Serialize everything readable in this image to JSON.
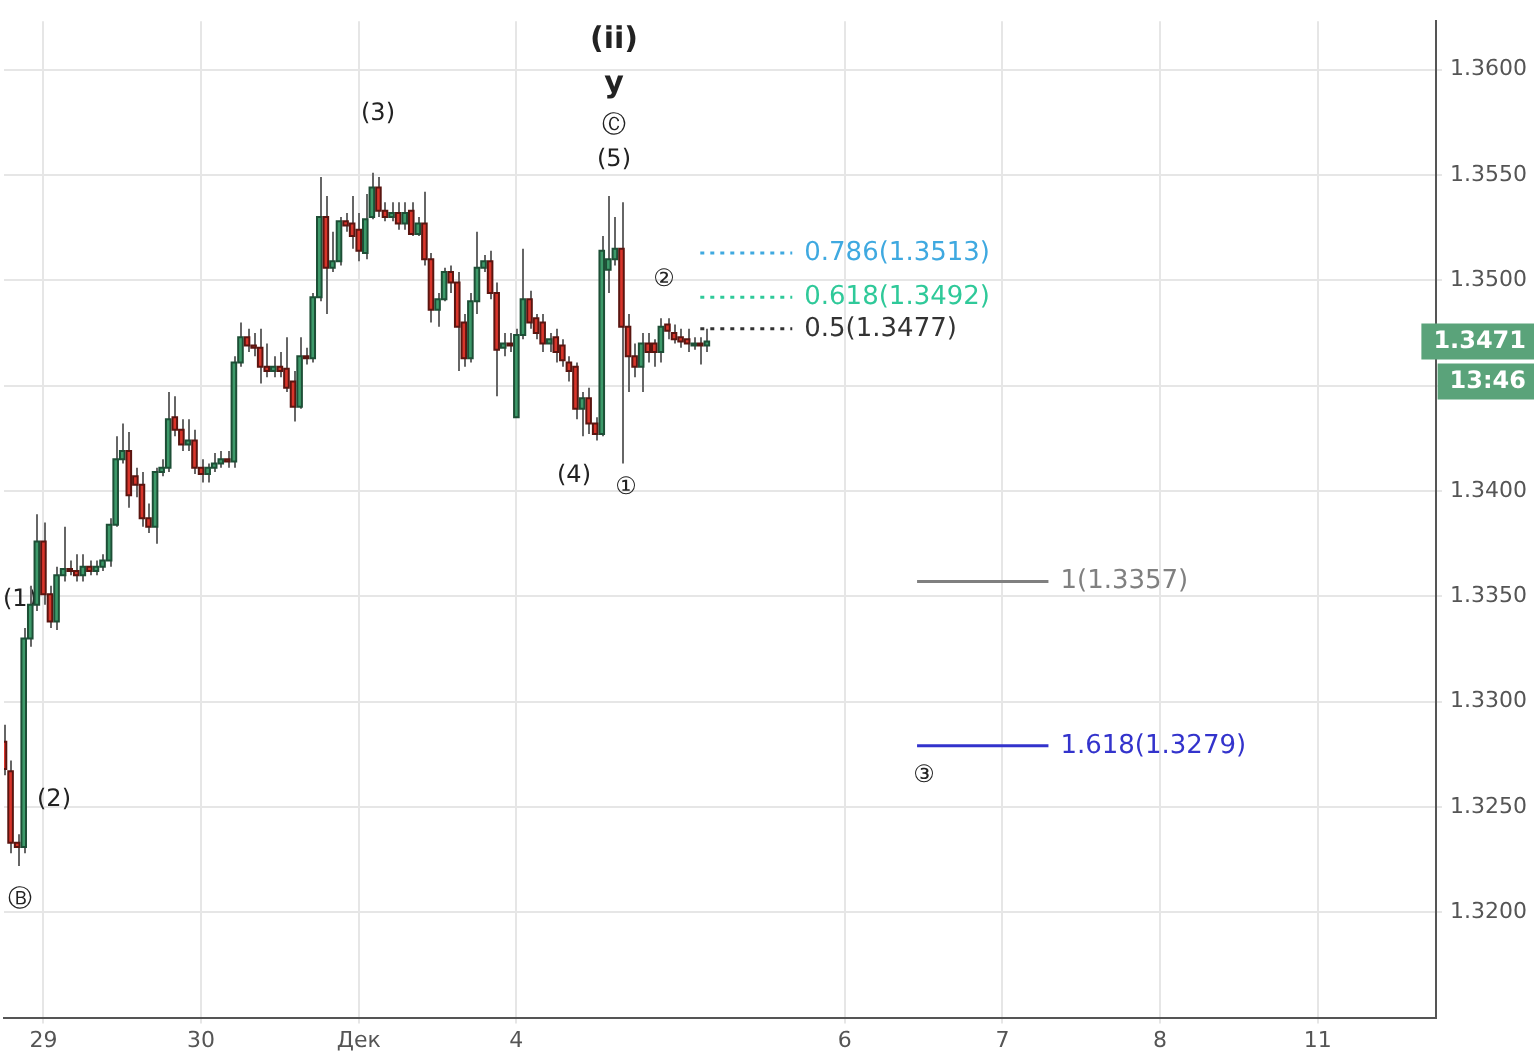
{
  "chart_data": {
    "type": "candlestick",
    "categories": [
      null,
      null,
      null,
      null,
      null,
      null,
      "29",
      null,
      null,
      null,
      null,
      null,
      null,
      null,
      null,
      null,
      null,
      null,
      null,
      null,
      null,
      null,
      null,
      null,
      null,
      null,
      null,
      null,
      null,
      null,
      "30",
      null,
      null,
      null,
      null,
      null,
      null,
      null,
      null,
      null,
      null,
      null,
      null,
      null,
      null,
      null,
      null,
      null,
      null,
      null,
      null,
      null,
      null,
      null,
      "Дек",
      null,
      null,
      null,
      null,
      null,
      null,
      null,
      null,
      null,
      null,
      null,
      null,
      null,
      null,
      null,
      null,
      null,
      null,
      null,
      null,
      null,
      null,
      null,
      "4",
      null,
      null,
      null,
      null,
      null,
      null,
      null,
      null,
      null,
      null,
      null,
      null,
      null,
      null,
      null,
      null,
      null,
      null,
      null,
      null,
      null,
      null,
      null,
      null,
      null,
      null,
      null,
      null,
      null,
      null,
      null,
      null,
      null,
      null,
      null,
      null,
      null,
      null,
      null,
      null,
      null,
      null,
      null,
      null,
      null,
      null,
      null,
      null,
      null,
      "6",
      null,
      null,
      null,
      null,
      null,
      null,
      null,
      null,
      null,
      null,
      null,
      null,
      null,
      null,
      null,
      null,
      null,
      null,
      null,
      null,
      null,
      null,
      null,
      "7",
      null,
      null,
      null,
      null,
      null,
      null,
      null,
      null,
      null,
      null,
      null,
      null,
      null,
      null,
      null,
      null,
      null,
      null,
      null,
      null,
      null,
      null,
      null,
      "8",
      null,
      null,
      null,
      null,
      null,
      null,
      null,
      null,
      null,
      null,
      null,
      null,
      null,
      null,
      null,
      null,
      null,
      null,
      null,
      null,
      null,
      null,
      null,
      "11",
      null,
      null,
      null,
      null,
      null,
      null,
      null,
      null,
      null,
      null,
      null,
      null,
      null,
      null,
      null,
      null,
      null,
      null
    ],
    "ohlc": [
      [
        1.3281,
        1.3289,
        1.3265,
        1.3268
      ],
      [
        1.3267,
        1.3272,
        1.3228,
        1.3233
      ],
      [
        1.3233,
        1.3237,
        1.3222,
        1.3231
      ],
      [
        1.3231,
        1.3335,
        1.3228,
        1.333
      ],
      [
        1.333,
        1.3355,
        1.3326,
        1.3346
      ],
      [
        1.3346,
        1.3389,
        1.3343,
        1.3376
      ],
      [
        1.3376,
        1.3385,
        1.3346,
        1.3351
      ],
      [
        1.3351,
        1.3355,
        1.3335,
        1.3338
      ],
      [
        1.3338,
        1.3364,
        1.3334,
        1.336
      ],
      [
        1.336,
        1.3383,
        1.3357,
        1.3363
      ],
      [
        1.3363,
        1.3367,
        1.336,
        1.3362
      ],
      [
        1.3362,
        1.337,
        1.3357,
        1.336
      ],
      [
        1.336,
        1.337,
        1.3357,
        1.3364
      ],
      [
        1.3364,
        1.3367,
        1.336,
        1.3362
      ],
      [
        1.3362,
        1.3367,
        1.336,
        1.3364
      ],
      [
        1.3364,
        1.337,
        1.3362,
        1.3367
      ],
      [
        1.3367,
        1.3387,
        1.3364,
        1.3384
      ],
      [
        1.3384,
        1.3426,
        1.3383,
        1.3415
      ],
      [
        1.3415,
        1.3432,
        1.3413,
        1.3419
      ],
      [
        1.3419,
        1.3428,
        1.3392,
        1.3398
      ],
      [
        1.3407,
        1.3411,
        1.3397,
        1.3403
      ],
      [
        1.3403,
        1.3409,
        1.3383,
        1.3387
      ],
      [
        1.3387,
        1.3394,
        1.338,
        1.3383
      ],
      [
        1.3383,
        1.3411,
        1.3375,
        1.3409
      ],
      [
        1.3409,
        1.3415,
        1.3407,
        1.3411
      ],
      [
        1.3411,
        1.3447,
        1.3409,
        1.3434
      ],
      [
        1.3435,
        1.3445,
        1.3426,
        1.3429
      ],
      [
        1.3429,
        1.3434,
        1.3419,
        1.3422
      ],
      [
        1.3422,
        1.3434,
        1.3419,
        1.3424
      ],
      [
        1.3424,
        1.3429,
        1.3408,
        1.3411
      ],
      [
        1.3411,
        1.3415,
        1.3404,
        1.3408
      ],
      [
        1.3408,
        1.3413,
        1.3404,
        1.3411
      ],
      [
        1.3411,
        1.3418,
        1.3409,
        1.3413
      ],
      [
        1.3413,
        1.3419,
        1.3411,
        1.3415
      ],
      [
        1.3415,
        1.3419,
        1.3411,
        1.3414
      ],
      [
        1.3414,
        1.3464,
        1.3411,
        1.3461
      ],
      [
        1.3461,
        1.348,
        1.3459,
        1.3473
      ],
      [
        1.3473,
        1.3477,
        1.3466,
        1.3469
      ],
      [
        1.3469,
        1.3475,
        1.3464,
        1.3468
      ],
      [
        1.3468,
        1.3477,
        1.3451,
        1.3459
      ],
      [
        1.3459,
        1.347,
        1.3454,
        1.3457
      ],
      [
        1.3457,
        1.3464,
        1.3454,
        1.3459
      ],
      [
        1.3459,
        1.3466,
        1.3454,
        1.3457
      ],
      [
        1.3458,
        1.3473,
        1.3447,
        1.3449
      ],
      [
        1.3452,
        1.3457,
        1.3433,
        1.344
      ],
      [
        1.344,
        1.3473,
        1.3439,
        1.3464
      ],
      [
        1.3464,
        1.3468,
        1.346,
        1.3463
      ],
      [
        1.3463,
        1.3494,
        1.3461,
        1.3492
      ],
      [
        1.3492,
        1.3549,
        1.349,
        1.353
      ],
      [
        1.353,
        1.354,
        1.3484,
        1.3506
      ],
      [
        1.3506,
        1.3523,
        1.3504,
        1.3509
      ],
      [
        1.3509,
        1.353,
        1.3507,
        1.3528
      ],
      [
        1.3528,
        1.3532,
        1.3523,
        1.3526
      ],
      [
        1.3527,
        1.354,
        1.3515,
        1.3521
      ],
      [
        1.3524,
        1.3532,
        1.3509,
        1.3514
      ],
      [
        1.3513,
        1.3541,
        1.351,
        1.3529
      ],
      [
        1.353,
        1.3551,
        1.3529,
        1.3544
      ],
      [
        1.3544,
        1.3549,
        1.353,
        1.3533
      ],
      [
        1.3533,
        1.3537,
        1.3528,
        1.353
      ],
      [
        1.353,
        1.3537,
        1.3528,
        1.3532
      ],
      [
        1.3532,
        1.3537,
        1.3524,
        1.3527
      ],
      [
        1.3527,
        1.3537,
        1.3524,
        1.3532
      ],
      [
        1.3533,
        1.3537,
        1.3521,
        1.3522
      ],
      [
        1.3522,
        1.353,
        1.3521,
        1.3527
      ],
      [
        1.3527,
        1.3542,
        1.3507,
        1.351
      ],
      [
        1.351,
        1.3513,
        1.348,
        1.3486
      ],
      [
        1.3486,
        1.3494,
        1.3478,
        1.3491
      ],
      [
        1.3491,
        1.3506,
        1.349,
        1.3504
      ],
      [
        1.3504,
        1.3507,
        1.3494,
        1.3499
      ],
      [
        1.3499,
        1.3504,
        1.3457,
        1.3478
      ],
      [
        1.348,
        1.3484,
        1.3459,
        1.3463
      ],
      [
        1.3463,
        1.3494,
        1.3461,
        1.349
      ],
      [
        1.349,
        1.3523,
        1.3484,
        1.3506
      ],
      [
        1.3506,
        1.3512,
        1.3504,
        1.3509
      ],
      [
        1.3509,
        1.3514,
        1.3491,
        1.3494
      ],
      [
        1.3494,
        1.3499,
        1.3445,
        1.3467
      ],
      [
        1.3468,
        1.3475,
        1.3464,
        1.347
      ],
      [
        1.347,
        1.3475,
        1.3466,
        1.3469
      ],
      [
        1.3435,
        1.3477,
        1.3435,
        1.3474
      ],
      [
        1.3474,
        1.3515,
        1.3472,
        1.3491
      ],
      [
        1.3491,
        1.3495,
        1.3477,
        1.348
      ],
      [
        1.3482,
        1.3484,
        1.3472,
        1.3475
      ],
      [
        1.348,
        1.3484,
        1.3466,
        1.347
      ],
      [
        1.347,
        1.3475,
        1.3466,
        1.3472
      ],
      [
        1.3473,
        1.3477,
        1.3461,
        1.3466
      ],
      [
        1.3469,
        1.3472,
        1.3459,
        1.3462
      ],
      [
        1.3461,
        1.3464,
        1.3452,
        1.3457
      ],
      [
        1.3459,
        1.3461,
        1.3434,
        1.3439
      ],
      [
        1.3439,
        1.3447,
        1.3426,
        1.3444
      ],
      [
        1.3444,
        1.3449,
        1.3427,
        1.3432
      ],
      [
        1.3432,
        1.3435,
        1.3424,
        1.3427
      ],
      [
        1.3427,
        1.3521,
        1.3426,
        1.3514
      ],
      [
        1.3505,
        1.354,
        1.3494,
        1.351
      ],
      [
        1.351,
        1.353,
        1.3507,
        1.3515
      ],
      [
        1.3515,
        1.3537,
        1.3413,
        1.3478
      ],
      [
        1.3478,
        1.3484,
        1.3447,
        1.3464
      ],
      [
        1.3464,
        1.347,
        1.3454,
        1.3459
      ],
      [
        1.3459,
        1.3475,
        1.3447,
        1.347
      ],
      [
        1.347,
        1.3475,
        1.3461,
        1.3466
      ],
      [
        1.347,
        1.3472,
        1.3459,
        1.3466
      ],
      [
        1.3466,
        1.3482,
        1.3461,
        1.3478
      ],
      [
        1.3479,
        1.3482,
        1.3472,
        1.3476
      ],
      [
        1.3475,
        1.3479,
        1.347,
        1.3472
      ],
      [
        1.3473,
        1.3477,
        1.3468,
        1.3471
      ],
      [
        1.3472,
        1.3477,
        1.3466,
        1.347
      ],
      [
        1.347,
        1.3473,
        1.3467,
        1.347
      ],
      [
        1.347,
        1.3473,
        1.346,
        1.3469
      ],
      [
        1.3469,
        1.3477,
        1.3466,
        1.3471
      ],
      null,
      null,
      null,
      null,
      null,
      null,
      null,
      null,
      null,
      null,
      null,
      null,
      null,
      null,
      null,
      null,
      null,
      null,
      null,
      null,
      null,
      null,
      null,
      null,
      null,
      null,
      null,
      null,
      null,
      null,
      null,
      null,
      null,
      null,
      null,
      null,
      null,
      null,
      null,
      null,
      null,
      null,
      null,
      null,
      null,
      null,
      null,
      null,
      null,
      null,
      null,
      null,
      null,
      null,
      null,
      null,
      null,
      null,
      null,
      null,
      null,
      null,
      null,
      null,
      null,
      null,
      null,
      null,
      null,
      null,
      null,
      null,
      null,
      null,
      null,
      null,
      null,
      null,
      null,
      null,
      null,
      null,
      null,
      null,
      null,
      null,
      null,
      null,
      null,
      null,
      null,
      null,
      null,
      null,
      null,
      null,
      null,
      null,
      null,
      null,
      null,
      null,
      null,
      null,
      null,
      null,
      null,
      null,
      null,
      null,
      null
    ],
    "series": [
      {
        "type": "line",
        "name": "0.786(1.3513)",
        "color": "#3fa9e0",
        "line_style": "dotted",
        "values": [
          null,
          null,
          null,
          null,
          null,
          null,
          null,
          null,
          null,
          null,
          null,
          null,
          null,
          null,
          null,
          null,
          null,
          null,
          null,
          null,
          null,
          null,
          null,
          null,
          null,
          null,
          null,
          null,
          null,
          null,
          null,
          null,
          null,
          null,
          null,
          null,
          null,
          null,
          null,
          null,
          null,
          null,
          null,
          null,
          null,
          null,
          null,
          null,
          null,
          null,
          null,
          null,
          null,
          null,
          null,
          null,
          null,
          null,
          null,
          null,
          null,
          null,
          null,
          null,
          null,
          null,
          null,
          null,
          null,
          null,
          null,
          null,
          null,
          null,
          null,
          null,
          null,
          null,
          null,
          null,
          null,
          null,
          null,
          null,
          null,
          null,
          null,
          null,
          null,
          null,
          null,
          null,
          null,
          null,
          null,
          null,
          null,
          null,
          null,
          null,
          null,
          null,
          null,
          null,
          null,
          null,
          1.3513,
          1.3513,
          1.3513,
          1.3513,
          1.3513,
          1.3513,
          1.3513,
          1.3513,
          1.3513,
          1.3513,
          1.3513,
          1.3513,
          1.3513,
          1.3513,
          1.3513,
          null,
          null,
          null,
          null,
          null,
          null,
          null,
          null,
          null,
          null,
          null,
          null,
          null,
          null,
          null,
          null,
          null,
          null,
          null,
          null,
          null,
          null,
          null,
          null,
          null,
          null,
          null,
          null,
          null,
          null,
          null,
          null,
          null,
          null,
          null,
          null,
          null,
          null,
          null,
          null,
          null,
          null,
          null,
          null,
          null,
          null,
          null,
          null,
          null,
          null,
          null,
          null,
          null,
          null,
          null,
          null,
          null,
          null,
          null,
          null,
          null,
          null,
          null,
          null,
          null,
          null,
          null,
          null,
          null,
          null,
          null,
          null,
          null,
          null,
          null,
          null,
          null,
          null,
          null,
          null,
          null,
          null,
          null,
          null,
          null,
          null,
          null,
          null,
          null,
          null,
          null,
          null,
          null,
          null,
          null,
          null,
          null,
          null
        ]
      },
      {
        "type": "line",
        "name": "0.618(1.3492)",
        "color": "#2fc999",
        "line_style": "dotted",
        "values": [
          null,
          null,
          null,
          null,
          null,
          null,
          null,
          null,
          null,
          null,
          null,
          null,
          null,
          null,
          null,
          null,
          null,
          null,
          null,
          null,
          null,
          null,
          null,
          null,
          null,
          null,
          null,
          null,
          null,
          null,
          null,
          null,
          null,
          null,
          null,
          null,
          null,
          null,
          null,
          null,
          null,
          null,
          null,
          null,
          null,
          null,
          null,
          null,
          null,
          null,
          null,
          null,
          null,
          null,
          null,
          null,
          null,
          null,
          null,
          null,
          null,
          null,
          null,
          null,
          null,
          null,
          null,
          null,
          null,
          null,
          null,
          null,
          null,
          null,
          null,
          null,
          null,
          null,
          null,
          null,
          null,
          null,
          null,
          null,
          null,
          null,
          null,
          null,
          null,
          null,
          null,
          null,
          null,
          null,
          null,
          null,
          null,
          null,
          null,
          null,
          null,
          null,
          null,
          null,
          null,
          null,
          1.3492,
          1.3492,
          1.3492,
          1.3492,
          1.3492,
          1.3492,
          1.3492,
          1.3492,
          1.3492,
          1.3492,
          1.3492,
          1.3492,
          1.3492,
          1.3492,
          1.3492,
          null,
          null,
          null,
          null,
          null,
          null,
          null,
          null,
          null,
          null,
          null,
          null,
          null,
          null,
          null,
          null,
          null,
          null,
          null,
          null,
          null,
          null,
          null,
          null,
          null,
          null,
          null,
          null,
          null,
          null,
          null,
          null,
          null,
          null,
          null,
          null,
          null,
          null,
          null,
          null,
          null,
          null,
          null,
          null,
          null,
          null,
          null,
          null,
          null,
          null,
          null,
          null,
          null,
          null,
          null,
          null,
          null,
          null,
          null,
          null,
          null,
          null,
          null,
          null,
          null,
          null,
          null,
          null,
          null,
          null,
          null,
          null,
          null,
          null,
          null,
          null,
          null,
          null,
          null,
          null,
          null,
          null,
          null,
          null,
          null,
          null,
          null,
          null,
          null,
          null,
          null,
          null,
          null,
          null,
          null,
          null,
          null,
          null
        ]
      },
      {
        "type": "line",
        "name": "0.5(1.3477)",
        "color": "#333333",
        "line_style": "dotted",
        "values": [
          null,
          null,
          null,
          null,
          null,
          null,
          null,
          null,
          null,
          null,
          null,
          null,
          null,
          null,
          null,
          null,
          null,
          null,
          null,
          null,
          null,
          null,
          null,
          null,
          null,
          null,
          null,
          null,
          null,
          null,
          null,
          null,
          null,
          null,
          null,
          null,
          null,
          null,
          null,
          null,
          null,
          null,
          null,
          null,
          null,
          null,
          null,
          null,
          null,
          null,
          null,
          null,
          null,
          null,
          null,
          null,
          null,
          null,
          null,
          null,
          null,
          null,
          null,
          null,
          null,
          null,
          null,
          null,
          null,
          null,
          null,
          null,
          null,
          null,
          null,
          null,
          null,
          null,
          null,
          null,
          null,
          null,
          null,
          null,
          null,
          null,
          null,
          null,
          null,
          null,
          null,
          null,
          null,
          null,
          null,
          null,
          null,
          null,
          null,
          null,
          null,
          null,
          null,
          null,
          null,
          null,
          1.3477,
          1.3477,
          1.3477,
          1.3477,
          1.3477,
          1.3477,
          1.3477,
          1.3477,
          1.3477,
          1.3477,
          1.3477,
          1.3477,
          1.3477,
          1.3477,
          1.3477,
          null,
          null,
          null,
          null,
          null,
          null,
          null,
          null,
          null,
          null,
          null,
          null,
          null,
          null,
          null,
          null,
          null,
          null,
          null,
          null,
          null,
          null,
          null,
          null,
          null,
          null,
          null,
          null,
          null,
          null,
          null,
          null,
          null,
          null,
          null,
          null,
          null,
          null,
          null,
          null,
          null,
          null,
          null,
          null,
          null,
          null,
          null,
          null,
          null,
          null,
          null,
          null,
          null,
          null,
          null,
          null,
          null,
          null,
          null,
          null,
          null,
          null,
          null,
          null,
          null,
          null,
          null,
          null,
          null,
          null,
          null,
          null,
          null,
          null,
          null,
          null,
          null,
          null,
          null,
          null,
          null,
          null,
          null,
          null,
          null,
          null,
          null,
          null,
          null,
          null,
          null,
          null,
          null,
          null,
          null,
          null,
          null,
          null
        ]
      },
      {
        "type": "line",
        "name": "1(1.3357)",
        "color": "#808080",
        "line_style": "solid",
        "values": [
          null,
          null,
          null,
          null,
          null,
          null,
          null,
          null,
          null,
          null,
          null,
          null,
          null,
          null,
          null,
          null,
          null,
          null,
          null,
          null,
          null,
          null,
          null,
          null,
          null,
          null,
          null,
          null,
          null,
          null,
          null,
          null,
          null,
          null,
          null,
          null,
          null,
          null,
          null,
          null,
          null,
          null,
          null,
          null,
          null,
          null,
          null,
          null,
          null,
          null,
          null,
          null,
          null,
          null,
          null,
          null,
          null,
          null,
          null,
          null,
          null,
          null,
          null,
          null,
          null,
          null,
          null,
          null,
          null,
          null,
          null,
          null,
          null,
          null,
          null,
          null,
          null,
          null,
          null,
          null,
          null,
          null,
          null,
          null,
          null,
          null,
          null,
          null,
          null,
          null,
          null,
          null,
          null,
          null,
          null,
          null,
          null,
          null,
          null,
          null,
          null,
          null,
          null,
          null,
          null,
          null,
          null,
          null,
          null,
          null,
          null,
          null,
          null,
          null,
          null,
          null,
          null,
          null,
          null,
          null,
          null,
          null,
          null,
          null,
          null,
          null,
          null,
          null,
          null,
          null,
          null,
          null,
          null,
          null,
          null,
          null,
          null,
          null,
          null,
          1.3357,
          1.3357,
          1.3357,
          1.3357,
          1.3357,
          1.3357,
          1.3357,
          1.3357,
          1.3357,
          1.3357,
          1.3357,
          1.3357,
          1.3357,
          1.3357,
          1.3357,
          1.3357,
          1.3357,
          1.3357,
          1.3357,
          1.3357,
          1.3357,
          null,
          null,
          null,
          null,
          null,
          null,
          null,
          null,
          null,
          null,
          null,
          null,
          null,
          null,
          null,
          null,
          null,
          null,
          null,
          null,
          null,
          null,
          null,
          null,
          null,
          null,
          null,
          null,
          null,
          null,
          null,
          null,
          null,
          null,
          null,
          null,
          null,
          null,
          null,
          null,
          null,
          null,
          null,
          null,
          null,
          null,
          null,
          null,
          null,
          null,
          null,
          null,
          null,
          null,
          null,
          null,
          null,
          null,
          null
        ]
      },
      {
        "type": "line",
        "name": "1.618(1.3279)",
        "color": "#3333cc",
        "line_style": "solid",
        "values": [
          null,
          null,
          null,
          null,
          null,
          null,
          null,
          null,
          null,
          null,
          null,
          null,
          null,
          null,
          null,
          null,
          null,
          null,
          null,
          null,
          null,
          null,
          null,
          null,
          null,
          null,
          null,
          null,
          null,
          null,
          null,
          null,
          null,
          null,
          null,
          null,
          null,
          null,
          null,
          null,
          null,
          null,
          null,
          null,
          null,
          null,
          null,
          null,
          null,
          null,
          null,
          null,
          null,
          null,
          null,
          null,
          null,
          null,
          null,
          null,
          null,
          null,
          null,
          null,
          null,
          null,
          null,
          null,
          null,
          null,
          null,
          null,
          null,
          null,
          null,
          null,
          null,
          null,
          null,
          null,
          null,
          null,
          null,
          null,
          null,
          null,
          null,
          null,
          null,
          null,
          null,
          null,
          null,
          null,
          null,
          null,
          null,
          null,
          null,
          null,
          null,
          null,
          null,
          null,
          null,
          null,
          null,
          null,
          null,
          null,
          null,
          null,
          null,
          null,
          null,
          null,
          null,
          null,
          null,
          null,
          null,
          null,
          null,
          null,
          null,
          null,
          null,
          null,
          null,
          null,
          null,
          null,
          null,
          null,
          null,
          null,
          null,
          null,
          null,
          1.3279,
          1.3279,
          1.3279,
          1.3279,
          1.3279,
          1.3279,
          1.3279,
          1.3279,
          1.3279,
          1.3279,
          1.3279,
          1.3279,
          1.3279,
          1.3279,
          1.3279,
          1.3279,
          1.3279,
          1.3279,
          1.3279,
          1.3279,
          1.3279,
          null,
          null,
          null,
          null,
          null,
          null,
          null,
          null,
          null,
          null,
          null,
          null,
          null,
          null,
          null,
          null,
          null,
          null,
          null,
          null,
          null,
          null,
          null,
          null,
          null,
          null,
          null,
          null,
          null,
          null,
          null,
          null,
          null,
          null,
          null,
          null,
          null,
          null,
          null,
          null,
          null,
          null,
          null,
          null,
          null,
          null,
          null,
          null,
          null,
          null,
          null,
          null,
          null,
          null,
          null,
          null,
          null,
          null,
          null
        ]
      }
    ],
    "annotations": [
      "(ii)",
      "y",
      "Ⓒ",
      "(5)",
      "(3)",
      "(4)",
      "①",
      "②",
      "③",
      "(2)",
      "(1)",
      "Ⓑ",
      "1.3471",
      "13:46"
    ],
    "ylim": [
      1.315,
      1.3623
    ],
    "yticks": [
      {
        "value": 1.32,
        "label": "1.3200"
      },
      {
        "value": 1.325,
        "label": "1.3250"
      },
      {
        "value": 1.33,
        "label": "1.3300"
      },
      {
        "value": 1.335,
        "label": "1.3350"
      },
      {
        "value": 1.34,
        "label": "1.3400"
      },
      {
        "value": 1.345,
        "label": null
      },
      {
        "value": 1.35,
        "label": "1.3500"
      },
      {
        "value": 1.355,
        "label": "1.3550"
      },
      {
        "value": 1.36,
        "label": "1.3600"
      }
    ],
    "grid": true
  }
}
